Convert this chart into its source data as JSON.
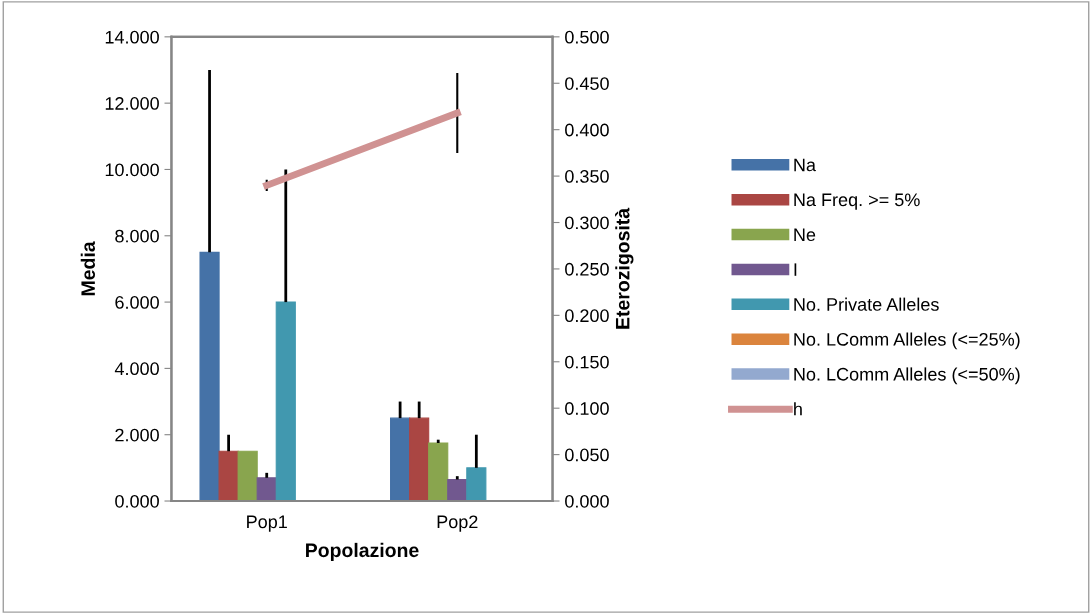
{
  "chart_data": {
    "type": "bar",
    "xlabel": "Popolazione",
    "ylabel": "Media",
    "y2label": "Eterozigosità",
    "categories": [
      "Pop1",
      "Pop2"
    ],
    "series": [
      {
        "name": "Na",
        "color": "#4572a7",
        "values": [
          7.5,
          2.5
        ],
        "errors": [
          [
            7.5,
            13.0
          ],
          [
            2.5,
            3.0
          ]
        ]
      },
      {
        "name": "Na Freq. >= 5%",
        "color": "#aa4643",
        "values": [
          1.5,
          2.5
        ],
        "errors": [
          [
            1.5,
            2.0
          ],
          [
            2.5,
            3.0
          ]
        ]
      },
      {
        "name": "Ne",
        "color": "#89a54e",
        "values": [
          1.5,
          1.75
        ],
        "errors": [
          null,
          [
            1.75,
            1.85
          ]
        ]
      },
      {
        "name": "I",
        "color": "#71588f",
        "values": [
          0.7,
          0.65
        ],
        "errors": [
          [
            0.7,
            0.85
          ],
          [
            0.65,
            0.75
          ]
        ]
      },
      {
        "name": "No. Private Alleles",
        "color": "#4198af",
        "values": [
          6.0,
          1.0
        ],
        "errors": [
          [
            6.0,
            10.0
          ],
          [
            1.0,
            2.0
          ]
        ]
      },
      {
        "name": "No. LComm Alleles (<=25%)",
        "color": "#db843d",
        "values": [
          0,
          0
        ]
      },
      {
        "name": "No. LComm Alleles (<=50%)",
        "color": "#93a9cf",
        "values": [
          0,
          0
        ]
      },
      {
        "name": "h",
        "type": "line",
        "axis": "y2",
        "color": "#d09292",
        "values": [
          0.34,
          0.418
        ],
        "errors": [
          0.006,
          0.043
        ]
      }
    ],
    "ylim": [
      0,
      14
    ],
    "yticks": [
      {
        "value": 0,
        "label": "0.000"
      },
      {
        "value": 2,
        "label": "2.000"
      },
      {
        "value": 4,
        "label": "4.000"
      },
      {
        "value": 6,
        "label": "6.000"
      },
      {
        "value": 8,
        "label": "8.000"
      },
      {
        "value": 10,
        "label": "10.000"
      },
      {
        "value": 12,
        "label": "12.000"
      },
      {
        "value": 14,
        "label": "14.000"
      }
    ],
    "y2lim": [
      0,
      0.5
    ],
    "y2ticks": [
      {
        "value": 0,
        "label": "0.000"
      },
      {
        "value": 0.05,
        "label": "0.050"
      },
      {
        "value": 0.1,
        "label": "0.100"
      },
      {
        "value": 0.15,
        "label": "0.150"
      },
      {
        "value": 0.2,
        "label": "0.200"
      },
      {
        "value": 0.25,
        "label": "0.250"
      },
      {
        "value": 0.3,
        "label": "0.300"
      },
      {
        "value": 0.35,
        "label": "0.350"
      },
      {
        "value": 0.4,
        "label": "0.400"
      },
      {
        "value": 0.45,
        "label": "0.450"
      },
      {
        "value": 0.5,
        "label": "0.500"
      }
    ],
    "grid": false,
    "legend": "right",
    "marker": "none"
  }
}
